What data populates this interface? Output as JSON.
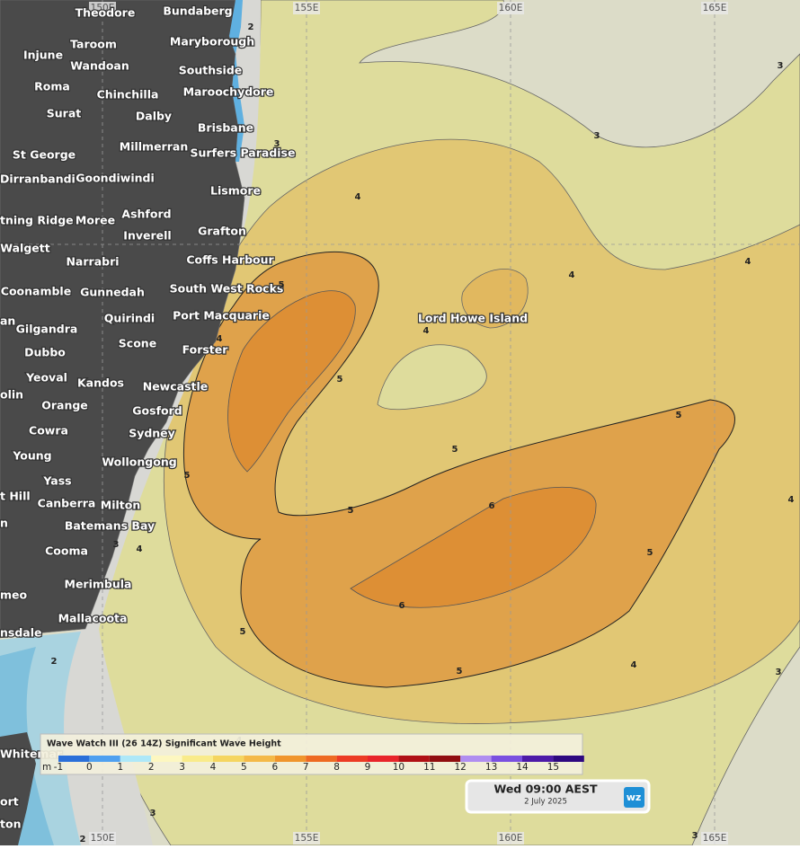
{
  "map": {
    "longitude_labels": [
      "150E",
      "155E",
      "160E",
      "165E"
    ],
    "places": [
      "Theodore",
      "Bundaberg",
      "Taroom",
      "Maryborough",
      "Injune",
      "Wandoan",
      "Southside",
      "Roma",
      "Chinchilla",
      "Maroochydore",
      "Surat",
      "Dalby",
      "Brisbane",
      "St George",
      "Millmerran",
      "Surfers Paradise",
      "Dirranbandi",
      "Goondiwindi",
      "Lismore",
      "tning Ridge",
      "Moree",
      "Ashford",
      "Grafton",
      "Inverell",
      "Walgett",
      "Narrabri",
      "Coffs Harbour",
      "Coonamble",
      "Gunnedah",
      "South West Rocks",
      "an",
      "Port Macquarie",
      "Quirindi",
      "Gilgandra",
      "Scone",
      "Forster",
      "Dubbo",
      "Yeoval",
      "Kandos",
      "Newcastle",
      "olin",
      "Orange",
      "Gosford",
      "Cowra",
      "Sydney",
      "Young",
      "Wollongong",
      "Yass",
      "t Hill",
      "Canberra",
      "Milton",
      "n",
      "Batemans Bay",
      "Cooma",
      "Merimbula",
      "meo",
      "Mallacoota",
      "nsdale",
      "Whitemar",
      "ort",
      "ton"
    ],
    "island_label": "Lord Howe Island",
    "contour_labels": [
      2,
      3,
      3,
      3,
      4,
      4,
      4,
      4,
      5,
      5,
      4,
      5,
      5,
      5,
      5,
      6,
      4,
      5,
      4,
      3,
      6,
      5,
      5,
      4,
      3,
      2,
      3,
      2,
      3,
      4
    ]
  },
  "legend": {
    "title": "Wave Watch III (26 14Z) Significant Wave Height",
    "unit": "m",
    "ticks": [
      -1,
      0,
      1,
      2,
      3,
      4,
      5,
      6,
      7,
      8,
      9,
      10,
      11,
      12,
      13,
      14,
      15
    ]
  },
  "time_panel": {
    "time": "Wed 09:00 AEST",
    "date": "2 July 2025",
    "logo": "wz"
  }
}
